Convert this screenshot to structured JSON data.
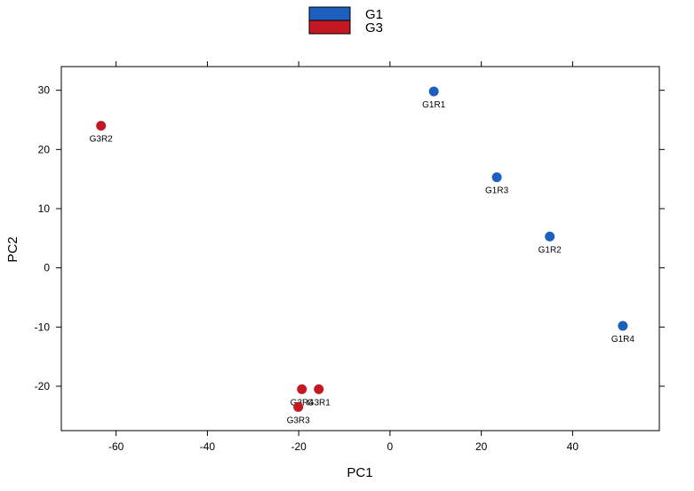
{
  "chart_data": {
    "type": "scatter",
    "xlabel": "PC1",
    "ylabel": "PC2",
    "xlim": [
      -72,
      59
    ],
    "ylim": [
      -27.5,
      34
    ],
    "xticks": [
      -60,
      -40,
      -20,
      0,
      20,
      40
    ],
    "yticks": [
      -20,
      -10,
      0,
      10,
      20,
      30
    ],
    "x_tick_labels": [
      "-60",
      "-40",
      "-20",
      "0",
      "20",
      "40"
    ],
    "y_tick_labels": [
      "-20",
      "-10",
      "0",
      "10",
      "20",
      "30"
    ],
    "legend_position": "top-center",
    "series": [
      {
        "name": "G1",
        "color": "#1c5fbf",
        "points": [
          {
            "label": "G1R1",
            "x": 9.6,
            "y": 29.8
          },
          {
            "label": "G1R3",
            "x": 23.4,
            "y": 15.3
          },
          {
            "label": "G1R2",
            "x": 35.0,
            "y": 5.3
          },
          {
            "label": "G1R4",
            "x": 51.0,
            "y": -9.8
          }
        ]
      },
      {
        "name": "G3",
        "color": "#c41924",
        "points": [
          {
            "label": "G3R2",
            "x": -63.3,
            "y": 24.0
          },
          {
            "label": "G3R4",
            "x": -19.3,
            "y": -20.5
          },
          {
            "label": "G3R1",
            "x": -15.6,
            "y": -20.5
          },
          {
            "label": "G3R3",
            "x": -20.1,
            "y": -23.5
          }
        ]
      }
    ]
  }
}
